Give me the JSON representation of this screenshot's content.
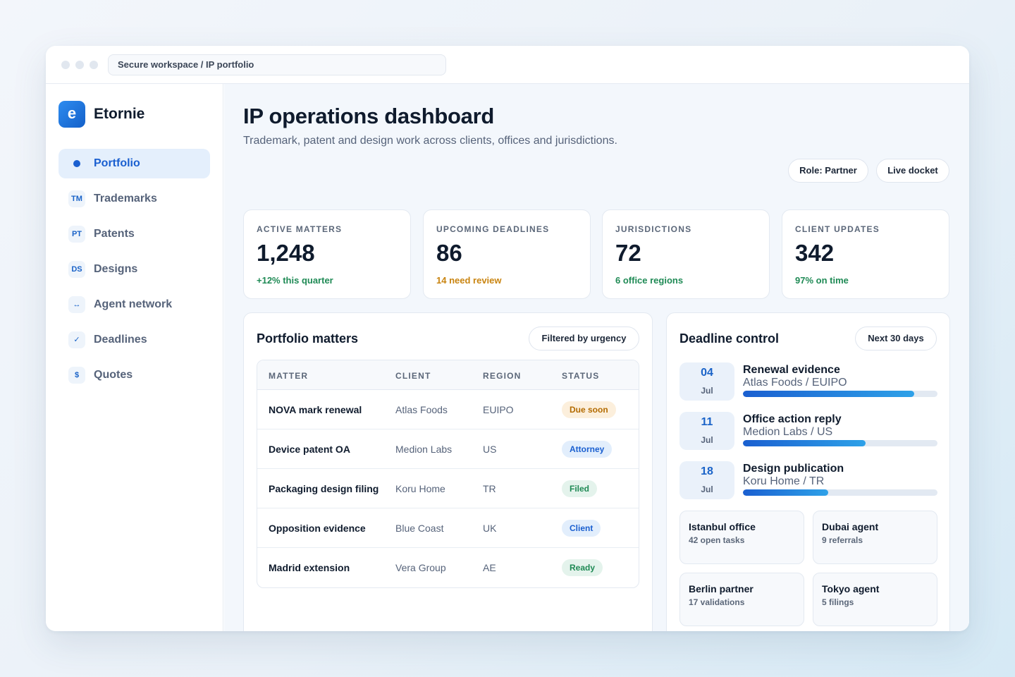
{
  "window": {
    "address": "Secure workspace / IP portfolio"
  },
  "brand": {
    "logo_letter": "e",
    "name": "Etornie"
  },
  "nav": {
    "items": [
      {
        "icon": "dot",
        "label": "Portfolio",
        "active": true
      },
      {
        "icon": "TM",
        "label": "Trademarks"
      },
      {
        "icon": "PT",
        "label": "Patents"
      },
      {
        "icon": "DS",
        "label": "Designs"
      },
      {
        "icon": "↔",
        "label": "Agent network"
      },
      {
        "icon": "✓",
        "label": "Deadlines"
      },
      {
        "icon": "$",
        "label": "Quotes"
      }
    ]
  },
  "header": {
    "title": "IP operations dashboard",
    "subtitle": "Trademark, patent and design work across clients, offices and jurisdictions.",
    "role_label": "Role: Partner",
    "live_label": "Live docket"
  },
  "kpis": [
    {
      "label": "ACTIVE MATTERS",
      "value": "1,248",
      "note": "+12% this quarter",
      "note_color": "#1f8a55"
    },
    {
      "label": "UPCOMING DEADLINES",
      "value": "86",
      "note": "14 need review",
      "note_color": "#c98410"
    },
    {
      "label": "JURISDICTIONS",
      "value": "72",
      "note": "6 office regions",
      "note_color": "#1f8a55"
    },
    {
      "label": "CLIENT UPDATES",
      "value": "342",
      "note": "97% on time",
      "note_color": "#1f8a55"
    }
  ],
  "matters": {
    "title": "Portfolio matters",
    "filter_label": "Filtered by urgency",
    "columns": [
      "MATTER",
      "CLIENT",
      "REGION",
      "STATUS"
    ],
    "rows": [
      {
        "matter": "NOVA mark renewal",
        "client": "Atlas Foods",
        "region": "EUIPO",
        "status": "Due soon",
        "tone": "warn"
      },
      {
        "matter": "Device patent OA",
        "client": "Medion Labs",
        "region": "US",
        "status": "Attorney",
        "tone": "blue"
      },
      {
        "matter": "Packaging design filing",
        "client": "Koru Home",
        "region": "TR",
        "status": "Filed",
        "tone": "green"
      },
      {
        "matter": "Opposition evidence",
        "client": "Blue Coast",
        "region": "UK",
        "status": "Client",
        "tone": "blue"
      },
      {
        "matter": "Madrid extension",
        "client": "Vera Group",
        "region": "AE",
        "status": "Ready",
        "tone": "green"
      }
    ]
  },
  "deadlines": {
    "title": "Deadline control",
    "range_label": "Next 30 days",
    "items": [
      {
        "day": "04",
        "month": "Jul",
        "title": "Renewal evidence",
        "sub": "Atlas Foods / EUIPO",
        "progress": 0.88
      },
      {
        "day": "11",
        "month": "Jul",
        "title": "Office action reply",
        "sub": "Medion Labs / US",
        "progress": 0.63
      },
      {
        "day": "18",
        "month": "Jul",
        "title": "Design publication",
        "sub": "Koru Home / TR",
        "progress": 0.44
      }
    ],
    "offices": [
      {
        "name": "Istanbul office",
        "note": "42 open tasks"
      },
      {
        "name": "Dubai agent",
        "note": "9 referrals"
      },
      {
        "name": "Berlin partner",
        "note": "17 validations"
      },
      {
        "name": "Tokyo agent",
        "note": "5 filings"
      }
    ]
  }
}
